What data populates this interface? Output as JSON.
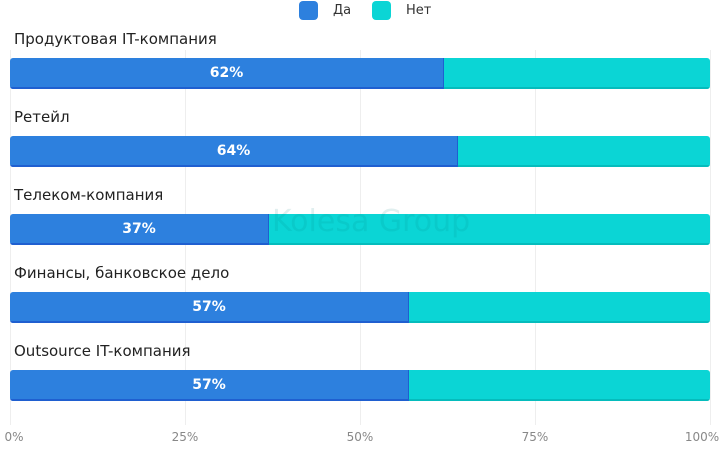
{
  "chart_data": {
    "type": "bar",
    "orientation": "horizontal",
    "stacked": true,
    "percent": true,
    "categories": [
      "Продуктовая IT-компания",
      "Ретейл",
      "Телеком-компания",
      "Финансы, банковское дело",
      "Outsource IT-компания"
    ],
    "series": [
      {
        "name": "Да",
        "values": [
          62,
          64,
          37,
          57,
          57
        ],
        "color": "#2d80de"
      },
      {
        "name": "Нет",
        "values": [
          38,
          36,
          63,
          43,
          43
        ],
        "color": "#0bd5d5"
      }
    ],
    "data_labels": [
      "62%",
      "64%",
      "37%",
      "57%",
      "57%"
    ],
    "xticks": [
      "0%",
      "25%",
      "50%",
      "75%",
      "100%"
    ],
    "xlim": [
      0,
      100
    ],
    "legend": "top-center",
    "grid": true,
    "watermark": "Kolesa Group"
  }
}
